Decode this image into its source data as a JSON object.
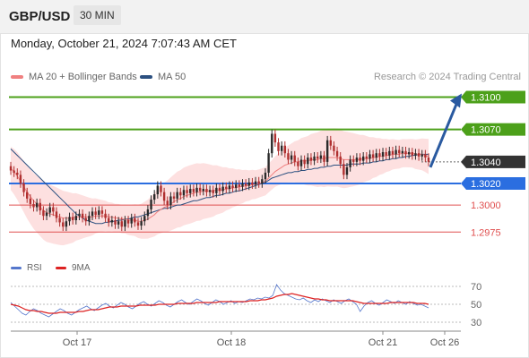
{
  "header": {
    "pair": "GBP/USD",
    "timeframe": "30 MIN"
  },
  "timestamp": "Monday, October 21, 2024 7:07:43 AM CET",
  "legend": {
    "ma20_bb": "MA 20 + Bollinger Bands",
    "ma50": "MA 50",
    "credit": "Research © 2024 Trading Central",
    "rsi": "RSI",
    "ma9": "9MA"
  },
  "colors": {
    "resistance": "#4ca01a",
    "pivot": "#2b6ee0",
    "support": "#e05050",
    "bollinger_fill": "#fde0e0",
    "ma20": "#f08080",
    "ma50": "#2c5080",
    "projection_arrow": "#2a5aa0",
    "current_price": "#333333",
    "rsi": "#5577cc",
    "rsi_ma": "#dd2222"
  },
  "chart_data": [
    {
      "type": "candlestick",
      "instrument": "GBP/USD",
      "timeframe": "30 MIN",
      "ylim": [
        1.2962,
        1.3107
      ],
      "x_ticks": [
        "Oct 17",
        "Oct 18",
        "Oct 21",
        "Oct 26"
      ],
      "levels": [
        {
          "value": 1.31,
          "label": "1.3100",
          "kind": "resistance"
        },
        {
          "value": 1.307,
          "label": "1.3070",
          "kind": "resistance"
        },
        {
          "value": 1.304,
          "label": "1.3040",
          "kind": "current"
        },
        {
          "value": 1.302,
          "label": "1.3020",
          "kind": "pivot"
        },
        {
          "value": 1.3,
          "label": "1.3000",
          "kind": "support"
        },
        {
          "value": 1.2975,
          "label": "1.2975",
          "kind": "support"
        }
      ],
      "projection": {
        "from": 1.3035,
        "to": 1.31
      },
      "closes": [
        1.3032,
        1.303,
        1.3028,
        1.302,
        1.3012,
        1.3006,
        1.3001,
        1.2998,
        1.3002,
        1.2995,
        1.299,
        1.2993,
        1.2998,
        1.2994,
        1.2988,
        1.2984,
        1.298,
        1.2985,
        1.2989,
        1.2986,
        1.299,
        1.2992,
        1.2988,
        1.2985,
        1.299,
        1.2994,
        1.2991,
        1.2995,
        1.2992,
        1.2988,
        1.2984,
        1.2986,
        1.2982,
        1.2985,
        1.298,
        1.2986,
        1.2983,
        1.2988,
        1.2984,
        1.2981,
        1.2985,
        1.299,
        1.2996,
        1.3005,
        1.301,
        1.3018,
        1.3012,
        1.3004,
        1.3,
        1.3008,
        1.3006,
        1.3012,
        1.3009,
        1.3014,
        1.3011,
        1.3015,
        1.3012,
        1.3016,
        1.3013,
        1.3015,
        1.3012,
        1.3014,
        1.3011,
        1.3016,
        1.3013,
        1.3017,
        1.3015,
        1.3018,
        1.3016,
        1.3019,
        1.3017,
        1.302,
        1.3018,
        1.3021,
        1.3019,
        1.3022,
        1.302,
        1.3024,
        1.303,
        1.3048,
        1.3066,
        1.3058,
        1.305,
        1.3055,
        1.3048,
        1.3042,
        1.3046,
        1.304,
        1.3036,
        1.3042,
        1.3038,
        1.3044,
        1.3041,
        1.3045,
        1.3043,
        1.3046,
        1.304,
        1.306,
        1.3055,
        1.305,
        1.3045,
        1.3038,
        1.3028,
        1.3035,
        1.3042,
        1.304,
        1.3044,
        1.3041,
        1.3045,
        1.3043,
        1.3047,
        1.3044,
        1.3048,
        1.3045,
        1.3049,
        1.3046,
        1.305,
        1.3047,
        1.3051,
        1.3048,
        1.305,
        1.3047,
        1.3049,
        1.3046,
        1.3048,
        1.3045,
        1.3047,
        1.3044,
        1.304
      ],
      "ma20": [
        1.3034,
        1.3031,
        1.3027,
        1.3022,
        1.3017,
        1.3012,
        1.3008,
        1.3004,
        1.3001,
        1.2998,
        1.2995,
        1.2993,
        1.2992,
        1.2991,
        1.299,
        1.2989,
        1.2988,
        1.2988,
        1.2988,
        1.2988,
        1.2989,
        1.2989,
        1.2989,
        1.2989,
        1.2989,
        1.2989,
        1.299,
        1.299,
        1.299,
        1.299,
        1.2989,
        1.2989,
        1.2988,
        1.2988,
        1.2987,
        1.2987,
        1.2986,
        1.2986,
        1.2986,
        1.2985,
        1.2985,
        1.2986,
        1.2987,
        1.2989,
        1.2991,
        1.2994,
        1.2996,
        1.2998,
        1.2999,
        1.3001,
        1.3003,
        1.3005,
        1.3006,
        1.3008,
        1.3009,
        1.301,
        1.3011,
        1.3012,
        1.3012,
        1.3013,
        1.3013,
        1.3013,
        1.3013,
        1.3014,
        1.3014,
        1.3014,
        1.3015,
        1.3015,
        1.3016,
        1.3016,
        1.3017,
        1.3017,
        1.3018,
        1.3018,
        1.3019,
        1.3019,
        1.302,
        1.3021,
        1.3022,
        1.3025,
        1.3028,
        1.3031,
        1.3033,
        1.3035,
        1.3037,
        1.3038,
        1.3039,
        1.304,
        1.304,
        1.3041,
        1.3041,
        1.3041,
        1.3042,
        1.3042,
        1.3042,
        1.3043,
        1.3043,
        1.3044,
        1.3044,
        1.3044,
        1.3044,
        1.3043,
        1.3042,
        1.3042,
        1.3042,
        1.3042,
        1.3042,
        1.3042,
        1.3043,
        1.3043,
        1.3043,
        1.3044,
        1.3044,
        1.3045,
        1.3045,
        1.3046,
        1.3046,
        1.3047,
        1.3047,
        1.3047,
        1.3048,
        1.3048,
        1.3048,
        1.3048,
        1.3047,
        1.3047,
        1.3047,
        1.3046,
        1.3045
      ],
      "ma50": [
        1.3052,
        1.3049,
        1.3046,
        1.3043,
        1.304,
        1.3037,
        1.3034,
        1.3031,
        1.3028,
        1.3025,
        1.3022,
        1.3019,
        1.3016,
        1.3013,
        1.301,
        1.3007,
        1.3004,
        1.3001,
        1.2998,
        1.2995,
        1.2992,
        1.299,
        1.2988,
        1.2986,
        1.2985,
        1.2984,
        1.2983,
        1.2983,
        1.2983,
        1.2984,
        1.2984,
        1.2985,
        1.2985,
        1.2986,
        1.2986,
        1.2987,
        1.2987,
        1.2988,
        1.2989,
        1.2989,
        1.299,
        1.2991,
        1.2992,
        1.2993,
        1.2994,
        1.2995,
        1.2996,
        1.2997,
        1.2997,
        1.2998,
        1.2999,
        1.3,
        1.3,
        1.3001,
        1.3002,
        1.3003,
        1.3004,
        1.3004,
        1.3005,
        1.3006,
        1.3007,
        1.3007,
        1.3008,
        1.3009,
        1.3009,
        1.301,
        1.3011,
        1.3011,
        1.3012,
        1.3013,
        1.3013,
        1.3014,
        1.3015,
        1.3016,
        1.3017,
        1.3018,
        1.3019,
        1.302,
        1.3021,
        1.3023,
        1.3025,
        1.3026,
        1.3027,
        1.3028,
        1.3029,
        1.303,
        1.303,
        1.3031,
        1.3031,
        1.3032,
        1.3032,
        1.3033,
        1.3033,
        1.3034,
        1.3034,
        1.3035,
        1.3035,
        1.3036,
        1.3036,
        1.3037,
        1.3037,
        1.3037,
        1.3037,
        1.3037,
        1.3038,
        1.3038,
        1.3038,
        1.3038,
        1.3039,
        1.3039,
        1.3039,
        1.304,
        1.304,
        1.3041,
        1.3041,
        1.3042,
        1.3042,
        1.3043,
        1.3043,
        1.3044,
        1.3044,
        1.3045,
        1.3045,
        1.3046,
        1.3046,
        1.3047,
        1.3047,
        1.3047,
        1.3047
      ]
    },
    {
      "type": "line",
      "name": "RSI",
      "ylim": [
        20,
        80
      ],
      "y_ticks": [
        70,
        50,
        30
      ],
      "series": [
        {
          "name": "RSI",
          "values": [
            52,
            48,
            44,
            40,
            38,
            42,
            45,
            43,
            40,
            38,
            36,
            39,
            42,
            45,
            43,
            40,
            38,
            41,
            44,
            46,
            48,
            45,
            43,
            46,
            49,
            51,
            48,
            46,
            49,
            52,
            50,
            47,
            45,
            48,
            51,
            53,
            50,
            48,
            51,
            54,
            52,
            49,
            47,
            50,
            53,
            55,
            52,
            50,
            53,
            56,
            54,
            51,
            49,
            52,
            55,
            53,
            50,
            52,
            54,
            51,
            53,
            52,
            54,
            56,
            55,
            57,
            56,
            58,
            57,
            60,
            72,
            66,
            62,
            60,
            58,
            56,
            55,
            57,
            54,
            52,
            55,
            53,
            56,
            54,
            52,
            55,
            53,
            51,
            54,
            56,
            53,
            50,
            42,
            48,
            52,
            54,
            51,
            49,
            52,
            55,
            53,
            51,
            54,
            52,
            50,
            53,
            51,
            49,
            50,
            48,
            46
          ]
        },
        {
          "name": "9MA",
          "values": [
            50,
            49,
            48,
            46,
            44,
            43,
            43,
            42,
            42,
            41,
            40,
            40,
            40,
            41,
            41,
            41,
            41,
            41,
            42,
            42,
            43,
            44,
            44,
            44,
            45,
            46,
            47,
            47,
            47,
            48,
            48,
            48,
            48,
            48,
            49,
            49,
            49,
            49,
            49,
            50,
            50,
            50,
            50,
            50,
            51,
            51,
            51,
            51,
            51,
            52,
            52,
            52,
            52,
            52,
            52,
            53,
            53,
            53,
            53,
            53,
            53,
            53,
            53,
            54,
            54,
            54,
            55,
            55,
            56,
            57,
            59,
            60,
            61,
            61,
            62,
            61,
            60,
            59,
            58,
            57,
            56,
            56,
            55,
            55,
            54,
            54,
            54,
            54,
            54,
            54,
            54,
            53,
            52,
            51,
            51,
            51,
            51,
            51,
            51,
            51,
            52,
            52,
            52,
            52,
            52,
            52,
            52,
            51,
            51,
            51,
            50
          ]
        }
      ]
    }
  ]
}
